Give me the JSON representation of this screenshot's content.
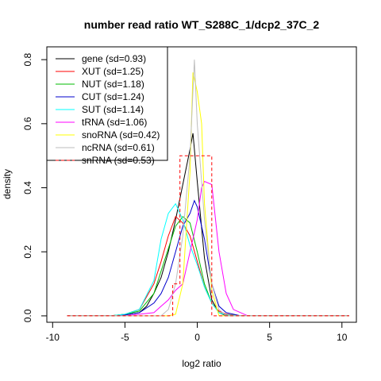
{
  "chart_data": {
    "type": "line",
    "title": "number read ratio WT_S288C_1/dcp2_37C_2",
    "xlabel": "log2 ratio",
    "ylabel": "density",
    "xlim": [
      -10.4,
      11
    ],
    "ylim": [
      -0.02,
      0.84
    ],
    "xticks": [
      -10,
      -5,
      0,
      5,
      10
    ],
    "yticks": [
      0.0,
      0.2,
      0.4,
      0.6,
      0.8
    ],
    "legend_position": "top-left",
    "grid": false,
    "series": [
      {
        "name": "gene (sd=0.93)",
        "color": "#000000",
        "dash": "none",
        "x": [
          -9,
          -6,
          -5,
          -4,
          -3.5,
          -3,
          -2.5,
          -2,
          -1.5,
          -1,
          -0.5,
          -0.3,
          0,
          0.5,
          1,
          1.5,
          2,
          3,
          10.5
        ],
        "y": [
          0,
          0,
          0.003,
          0.01,
          0.03,
          0.07,
          0.12,
          0.2,
          0.3,
          0.41,
          0.52,
          0.57,
          0.42,
          0.18,
          0.05,
          0.01,
          0,
          0,
          0
        ]
      },
      {
        "name": "XUT (sd=1.25)",
        "color": "#ff0000",
        "dash": "none",
        "x": [
          -9,
          -6,
          -5,
          -4,
          -3,
          -2.5,
          -2,
          -1.5,
          -1,
          -0.5,
          0,
          0.5,
          1,
          1.5,
          2,
          3,
          10.5
        ],
        "y": [
          0,
          0,
          0.005,
          0.02,
          0.1,
          0.17,
          0.25,
          0.31,
          0.29,
          0.25,
          0.17,
          0.09,
          0.04,
          0.015,
          0.005,
          0,
          0
        ]
      },
      {
        "name": "NUT (sd=1.18)",
        "color": "#00bb00",
        "dash": "none",
        "x": [
          -9,
          -6,
          -5,
          -4,
          -3,
          -2.5,
          -2,
          -1.5,
          -1,
          -0.5,
          0,
          0.5,
          1,
          1.5,
          2,
          3,
          10.5
        ],
        "y": [
          0,
          0,
          0.005,
          0.015,
          0.07,
          0.14,
          0.21,
          0.28,
          0.31,
          0.29,
          0.2,
          0.1,
          0.04,
          0.01,
          0.003,
          0,
          0
        ]
      },
      {
        "name": "CUT (sd=1.24)",
        "color": "#0000cc",
        "dash": "none",
        "x": [
          -9,
          -6,
          -5,
          -4,
          -3,
          -2.5,
          -2,
          -1.5,
          -1,
          -0.5,
          -0.2,
          0,
          0.5,
          1,
          1.5,
          2,
          3,
          10.5
        ],
        "y": [
          0,
          0,
          0.003,
          0.01,
          0.04,
          0.07,
          0.12,
          0.2,
          0.28,
          0.32,
          0.36,
          0.34,
          0.24,
          0.1,
          0.03,
          0.01,
          0,
          0
        ]
      },
      {
        "name": "SUT (sd=1.14)",
        "color": "#00ffff",
        "dash": "none",
        "x": [
          -9,
          -6,
          -5,
          -4,
          -3,
          -2.5,
          -2,
          -1.5,
          -1,
          -0.5,
          0,
          0.5,
          1,
          1.5,
          2,
          3,
          10.5
        ],
        "y": [
          0,
          0,
          0.005,
          0.02,
          0.11,
          0.24,
          0.32,
          0.35,
          0.3,
          0.22,
          0.16,
          0.09,
          0.04,
          0.01,
          0.003,
          0,
          0
        ]
      },
      {
        "name": "tRNA (sd=1.06)",
        "color": "#ff00ff",
        "dash": "none",
        "x": [
          -9,
          -5,
          -4,
          -3,
          -2.5,
          -2,
          -1.5,
          -1,
          -0.5,
          0,
          0.3,
          0.5,
          1,
          1.5,
          2,
          2.5,
          3,
          3.5,
          10.5
        ],
        "y": [
          0,
          0,
          0.005,
          0.01,
          0.03,
          0.05,
          0.08,
          0.1,
          0.2,
          0.3,
          0.4,
          0.42,
          0.41,
          0.2,
          0.07,
          0.02,
          0.01,
          0,
          0
        ]
      },
      {
        "name": "snoRNA (sd=0.42)",
        "color": "#ffff00",
        "dash": "none",
        "x": [
          -9,
          -2,
          -1.5,
          -1,
          -0.5,
          -0.3,
          0,
          0.3,
          0.5,
          1,
          1.5,
          10.5
        ],
        "y": [
          0,
          0,
          0.005,
          0.1,
          0.45,
          0.76,
          0.7,
          0.6,
          0.35,
          0.08,
          0,
          0
        ]
      },
      {
        "name": "ncRNA (sd=0.61)",
        "color": "#bebebe",
        "dash": "none",
        "x": [
          -9,
          -2.5,
          -2,
          -1.5,
          -1,
          -0.5,
          -0.2,
          0,
          0.5,
          1,
          1.5,
          2,
          10.5
        ],
        "y": [
          0,
          0,
          0.02,
          0.1,
          0.25,
          0.5,
          0.8,
          0.6,
          0.3,
          0.1,
          0.02,
          0,
          0
        ]
      },
      {
        "name": "snRNA (sd=0.53)",
        "color": "#ff0000",
        "dash": "4,3",
        "x": [
          -9,
          -1.7,
          -1.7,
          -1.2,
          -1.2,
          -0.5,
          -0.5,
          0,
          0,
          0.5,
          0.5,
          1,
          1,
          10.5
        ],
        "y": [
          0,
          0,
          0.1,
          0.1,
          0.5,
          0.5,
          0.5,
          0.5,
          0.5,
          0.5,
          0.5,
          0.5,
          0,
          0
        ]
      }
    ]
  }
}
